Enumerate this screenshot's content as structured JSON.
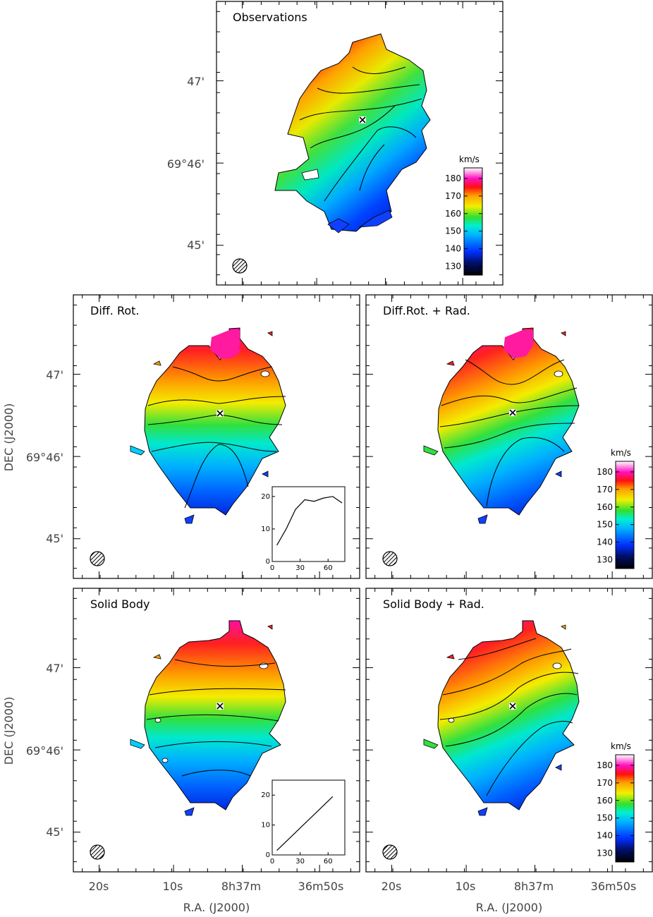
{
  "panels": [
    {
      "key": "obs",
      "title": "Observations"
    },
    {
      "key": "diffrot",
      "title": "Diff. Rot."
    },
    {
      "key": "diffrotrad",
      "title": "Diff.Rot. + Rad."
    },
    {
      "key": "solid",
      "title": "Solid Body"
    },
    {
      "key": "solidrad",
      "title": "Solid Body + Rad."
    }
  ],
  "axes": {
    "ylabel": "DEC (J2000)",
    "xlabel": "R.A. (J2000)",
    "dec_ticks": [
      "47'",
      "69°46'",
      "45'"
    ],
    "ra_ticks": [
      "20s",
      "10s",
      "8h37m",
      "36m50s"
    ]
  },
  "colorbar": {
    "unit": "km/s",
    "ticks": [
      180,
      170,
      160,
      150,
      140,
      130
    ],
    "range": [
      125,
      186
    ]
  },
  "colors": {
    "frame": "#000000",
    "contour": "#000000"
  },
  "chart_data": [
    {
      "type": "line",
      "title": "",
      "panel": "Diff. Rot.",
      "x": [
        5,
        15,
        25,
        35,
        45,
        55,
        65,
        75
      ],
      "y": [
        5,
        10,
        16,
        19,
        18.5,
        19.5,
        20,
        18
      ],
      "xticks": [
        0,
        30,
        60
      ],
      "yticks": [
        0,
        10,
        20
      ],
      "xlim": [
        0,
        78
      ],
      "ylim": [
        0,
        23
      ]
    },
    {
      "type": "line",
      "title": "",
      "panel": "Solid Body",
      "x": [
        5,
        65
      ],
      "y": [
        1.5,
        19.5
      ],
      "xticks": [
        0,
        30,
        60
      ],
      "yticks": [
        0,
        10,
        20
      ],
      "xlim": [
        0,
        78
      ],
      "ylim": [
        0,
        25
      ]
    }
  ]
}
